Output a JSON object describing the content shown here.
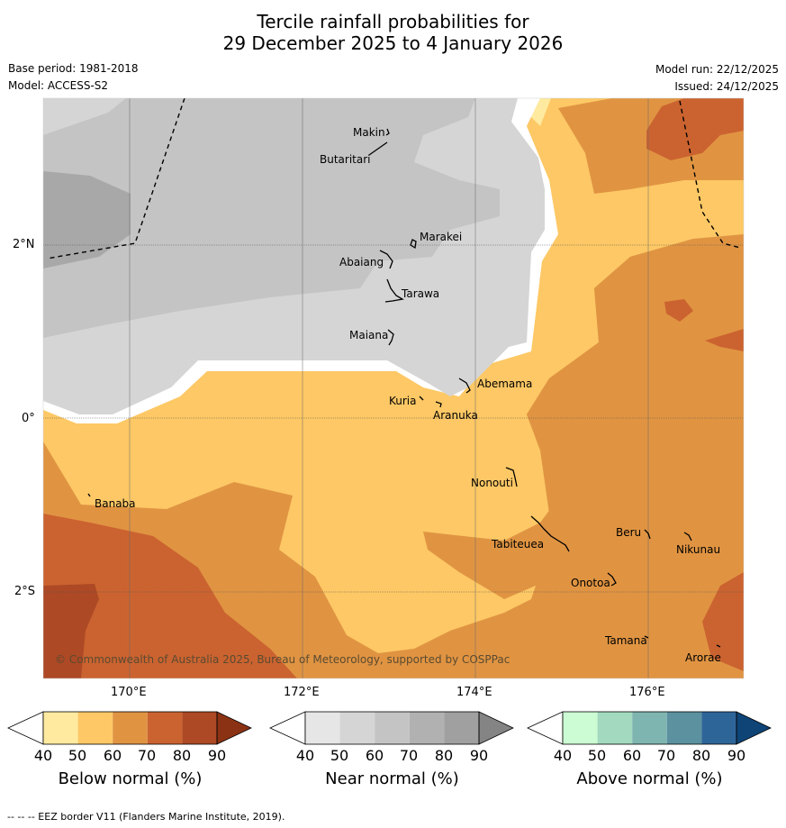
{
  "title": {
    "line1": "Tercile rainfall probabilities for",
    "line2": "29 December 2025 to 4 January 2026"
  },
  "meta": {
    "base_period": "Base period: 1981-2018",
    "model": "Model: ACCESS-S2",
    "model_run": "Model run: 22/12/2025",
    "issued": "Issued: 24/12/2025"
  },
  "map": {
    "lat_labels": [
      "2°N",
      "0°",
      "2°S"
    ],
    "lon_labels": [
      "170°E",
      "172°E",
      "174°E",
      "176°E"
    ],
    "places": [
      {
        "name": "Makin"
      },
      {
        "name": "Butaritari"
      },
      {
        "name": "Marakei"
      },
      {
        "name": "Abaiang"
      },
      {
        "name": "Tarawa"
      },
      {
        "name": "Maiana"
      },
      {
        "name": "Abemama"
      },
      {
        "name": "Kuria"
      },
      {
        "name": "Aranuka"
      },
      {
        "name": "Banaba"
      },
      {
        "name": "Nonouti"
      },
      {
        "name": "Beru"
      },
      {
        "name": "Tabiteuea"
      },
      {
        "name": "Nikunau"
      },
      {
        "name": "Onotoa"
      },
      {
        "name": "Tamana"
      },
      {
        "name": "Arorae"
      }
    ],
    "copyright": "© Commonwealth of Australia 2025, Bureau of Meteorology, supported by COSPPac"
  },
  "colorbars": [
    {
      "label": "Below normal (%)",
      "ticks": [
        "40",
        "50",
        "60",
        "70",
        "80",
        "90"
      ],
      "colors": [
        "#ffffff",
        "#ffeaa0",
        "#fdc865",
        "#e09442",
        "#cb6330",
        "#ad4925",
        "#8c3214"
      ]
    },
    {
      "label": "Near normal (%)",
      "ticks": [
        "40",
        "50",
        "60",
        "70",
        "80",
        "90"
      ],
      "colors": [
        "#ffffff",
        "#e6e6e6",
        "#d5d5d5",
        "#c4c4c4",
        "#b1b1b1",
        "#a0a0a0",
        "#848484"
      ]
    },
    {
      "label": "Above normal (%)",
      "ticks": [
        "40",
        "50",
        "60",
        "70",
        "80",
        "90"
      ],
      "colors": [
        "#ffffff",
        "#ccfcd3",
        "#a3d9be",
        "#7fb5b0",
        "#5c91a0",
        "#2e6599",
        "#0f4477"
      ]
    }
  ],
  "footer": "--  --  -- EEZ border V11 (Flanders Marine Institute, 2019)."
}
